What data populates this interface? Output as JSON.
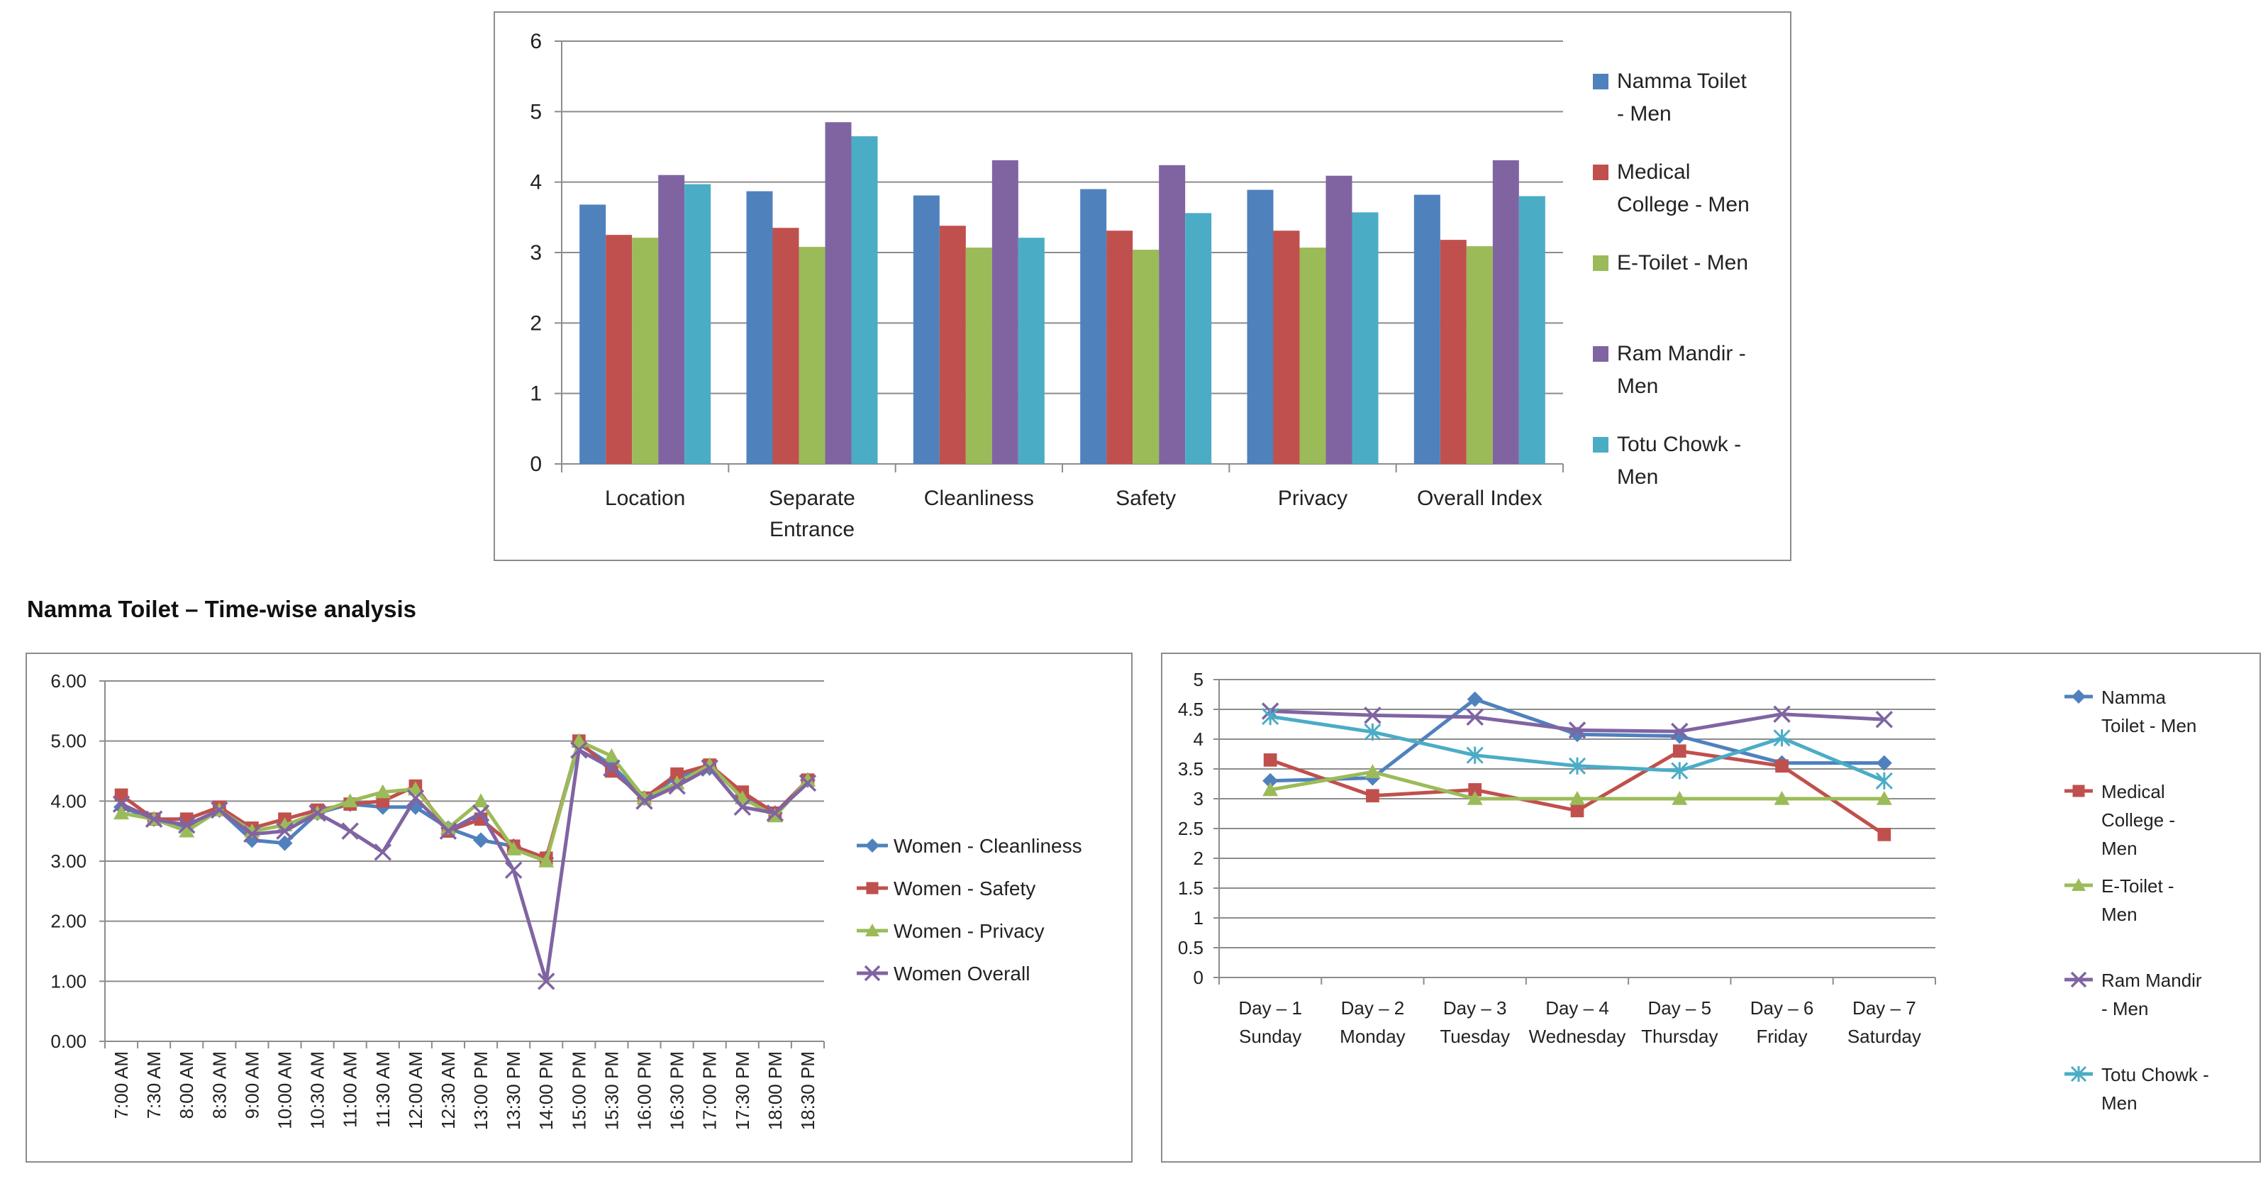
{
  "section_title": "Namma Toilet – Time-wise analysis",
  "chart_data": [
    {
      "type": "bar",
      "categories": [
        [
          "Location"
        ],
        [
          "Separate",
          "Entrance"
        ],
        [
          "Cleanliness"
        ],
        [
          "Safety"
        ],
        [
          "Privacy"
        ],
        [
          "Overall Index"
        ]
      ],
      "ylim": [
        0,
        6
      ],
      "yticks": [
        "0",
        "1",
        "2",
        "3",
        "4",
        "5",
        "6"
      ],
      "grid": true,
      "legend_position": "right",
      "series": [
        {
          "name": [
            "Namma Toilet",
            "- Men"
          ],
          "color": "#4f81bd",
          "values": [
            3.68,
            3.87,
            3.81,
            3.9,
            3.89,
            3.82
          ]
        },
        {
          "name": [
            "Medical",
            "College - Men"
          ],
          "color": "#c0504d",
          "values": [
            3.25,
            3.35,
            3.38,
            3.31,
            3.31,
            3.18
          ]
        },
        {
          "name": [
            "E-Toilet - Men"
          ],
          "color": "#9bbb59",
          "values": [
            3.21,
            3.08,
            3.07,
            3.04,
            3.07,
            3.09
          ]
        },
        {
          "name": [
            "Ram Mandir -",
            "Men"
          ],
          "color": "#8064a2",
          "values": [
            4.1,
            4.85,
            4.31,
            4.24,
            4.09,
            4.31
          ]
        },
        {
          "name": [
            "Totu Chowk -",
            "Men"
          ],
          "color": "#4bacc6",
          "values": [
            3.97,
            4.65,
            3.21,
            3.56,
            3.57,
            3.8
          ]
        }
      ]
    },
    {
      "type": "line",
      "categories": [
        "7:00 AM",
        "7:30 AM",
        "8:00 AM",
        "8:30 AM",
        "9:00 AM",
        "10:00 AM",
        "10:30 AM",
        "11:00 AM",
        "11:30 AM",
        "12:00 AM",
        "12:30 AM",
        "13:00 PM",
        "13:30 PM",
        "14:00 PM",
        "15:00 PM",
        "15:30 PM",
        "16:00 PM",
        "16:30 PM",
        "17:00 PM",
        "17:30 PM",
        "18:00 PM",
        "18:30 PM"
      ],
      "ylim": [
        0,
        6
      ],
      "yticks": [
        "0.00",
        "1.00",
        "2.00",
        "3.00",
        "4.00",
        "5.00",
        "6.00"
      ],
      "grid": true,
      "legend_position": "right",
      "series": [
        {
          "name": "Women - Cleanliness",
          "color": "#4f81bd",
          "marker": "diamond",
          "values": [
            3.9,
            3.7,
            3.55,
            3.85,
            3.35,
            3.3,
            3.8,
            3.95,
            3.9,
            3.9,
            3.55,
            3.35,
            3.25,
            3.05,
            4.95,
            4.6,
            4.05,
            4.4,
            4.55,
            4.1,
            3.8,
            4.35
          ]
        },
        {
          "name": "Women - Safety",
          "color": "#c0504d",
          "marker": "square",
          "values": [
            4.1,
            3.7,
            3.7,
            3.9,
            3.55,
            3.7,
            3.85,
            3.95,
            4.0,
            4.25,
            3.5,
            3.7,
            3.25,
            3.05,
            5.0,
            4.5,
            4.05,
            4.45,
            4.6,
            4.15,
            3.8,
            4.35
          ]
        },
        {
          "name": "Women - Privacy",
          "color": "#9bbb59",
          "marker": "triangle",
          "values": [
            3.8,
            3.7,
            3.5,
            3.85,
            3.5,
            3.6,
            3.8,
            4.0,
            4.15,
            4.2,
            3.55,
            4.0,
            3.2,
            3.0,
            5.0,
            4.75,
            4.05,
            4.3,
            4.6,
            4.05,
            3.75,
            4.35
          ]
        },
        {
          "name": "Women Overall",
          "color": "#8064a2",
          "marker": "x",
          "values": [
            3.95,
            3.7,
            3.6,
            3.85,
            3.45,
            3.5,
            3.8,
            3.5,
            3.15,
            4.05,
            3.5,
            3.8,
            2.85,
            1.0,
            4.85,
            4.55,
            4.0,
            4.25,
            4.55,
            3.9,
            3.8,
            4.3
          ]
        }
      ]
    },
    {
      "type": "line",
      "categories": [
        [
          "Day – 1",
          "Sunday"
        ],
        [
          "Day – 2",
          "Monday"
        ],
        [
          "Day – 3",
          "Tuesday"
        ],
        [
          "Day – 4",
          "Wednesday"
        ],
        [
          "Day – 5",
          "Thursday"
        ],
        [
          "Day – 6",
          "Friday"
        ],
        [
          "Day – 7",
          "Saturday"
        ]
      ],
      "ylim": [
        0,
        5
      ],
      "yticks": [
        "0",
        "0.5",
        "1",
        "1.5",
        "2",
        "2.5",
        "3",
        "3.5",
        "4",
        "4.5",
        "5"
      ],
      "grid": true,
      "legend_position": "right",
      "series": [
        {
          "name": [
            "Namma",
            "Toilet - Men"
          ],
          "color": "#4f81bd",
          "marker": "diamond",
          "values": [
            3.3,
            3.35,
            4.67,
            4.08,
            4.05,
            3.6,
            3.6
          ]
        },
        {
          "name": [
            "Medical",
            "College -",
            "Men"
          ],
          "color": "#c0504d",
          "marker": "square",
          "values": [
            3.65,
            3.05,
            3.15,
            2.8,
            3.8,
            3.55,
            2.4
          ]
        },
        {
          "name": [
            "E-Toilet -",
            "Men"
          ],
          "color": "#9bbb59",
          "marker": "triangle",
          "values": [
            3.15,
            3.45,
            3.0,
            3.0,
            3.0,
            3.0,
            3.0
          ]
        },
        {
          "name": [
            "Ram Mandir",
            "- Men"
          ],
          "color": "#8064a2",
          "marker": "x",
          "values": [
            4.47,
            4.4,
            4.37,
            4.15,
            4.13,
            4.42,
            4.33
          ]
        },
        {
          "name": [
            "Totu Chowk -",
            "Men"
          ],
          "color": "#4bacc6",
          "marker": "star",
          "values": [
            4.38,
            4.12,
            3.73,
            3.55,
            3.47,
            4.02,
            3.3
          ]
        }
      ]
    }
  ]
}
